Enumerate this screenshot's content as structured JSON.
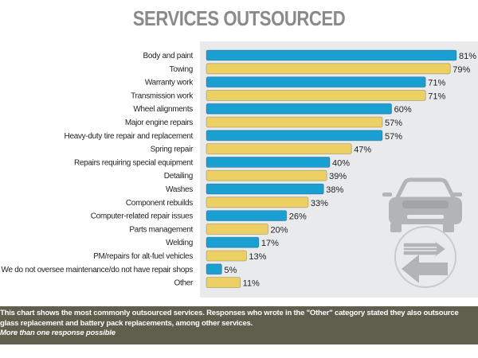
{
  "chart_data": {
    "type": "bar",
    "orientation": "horizontal",
    "title": "SERVICES OUTSOURCED",
    "categories": [
      "Body and paint",
      "Towing",
      "Warranty work",
      "Transmission work",
      "Wheel alignments",
      "Major engine repairs",
      "Heavy-duty tire repair and replacement",
      "Spring repair",
      "Repairs requiring special equipment",
      "Detailing",
      "Washes",
      "Component rebuilds",
      "Computer-related repair issues",
      "Parts management",
      "Welding",
      "PM/repairs for alt-fuel vehicles",
      "We do not oversee maintenance/do not have repair shops",
      "Other"
    ],
    "values": [
      81,
      79,
      71,
      71,
      60,
      57,
      57,
      47,
      40,
      39,
      38,
      33,
      26,
      20,
      17,
      13,
      5,
      11
    ],
    "value_suffix": "%",
    "xlim": [
      0,
      100
    ],
    "colors": {
      "odd_rows": "#1a9fd2",
      "even_rows": "#ecd064",
      "panel": "#e9eaec",
      "icon": "#b3b4b6"
    },
    "grid": false
  },
  "caption": {
    "line1": "This chart shows the most commonly outsourced services. Responses who wrote in the \"Other\" category stated they also outsource",
    "line2": "glass replacement and battery pack replacements, among other services.",
    "note": "More than one response possible"
  },
  "icons": [
    "car-icon",
    "swap-arrows-icon"
  ]
}
